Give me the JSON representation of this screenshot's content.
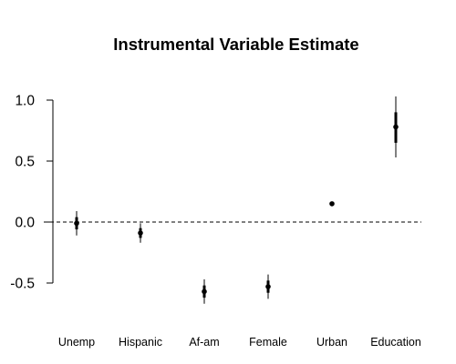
{
  "chart_data": {
    "type": "scatter",
    "title": "Instrumental Variable Estimate",
    "xlabel": "",
    "ylabel": "",
    "categories": [
      "Unemp",
      "Hispanic",
      "Af-am",
      "Female",
      "Urban",
      "Education"
    ],
    "series": [
      {
        "estimates": [
          -0.01,
          -0.09,
          -0.57,
          -0.53,
          0.15,
          0.78
        ],
        "inner_interval_low": [
          -0.06,
          -0.13,
          -0.62,
          -0.58,
          0.14,
          0.65
        ],
        "inner_interval_high": [
          0.04,
          -0.05,
          -0.52,
          -0.48,
          0.16,
          0.9
        ],
        "outer_interval_low": [
          -0.11,
          -0.17,
          -0.67,
          -0.63,
          0.14,
          0.53
        ],
        "outer_interval_high": [
          0.09,
          -0.01,
          -0.47,
          -0.43,
          0.16,
          1.03
        ]
      }
    ],
    "y_ticks": [
      -0.5,
      0.0,
      0.5,
      1.0
    ],
    "y_tick_labels": [
      "-0.5",
      "0.0",
      "0.5",
      "1.0"
    ],
    "ylim": [
      -0.82,
      1.12
    ],
    "reference_line": {
      "y": 0,
      "style": "dashed"
    },
    "grid": false,
    "legend": "none",
    "colors": {
      "points": "#000000",
      "axis": "#000000",
      "reference_line": "#000000"
    }
  }
}
